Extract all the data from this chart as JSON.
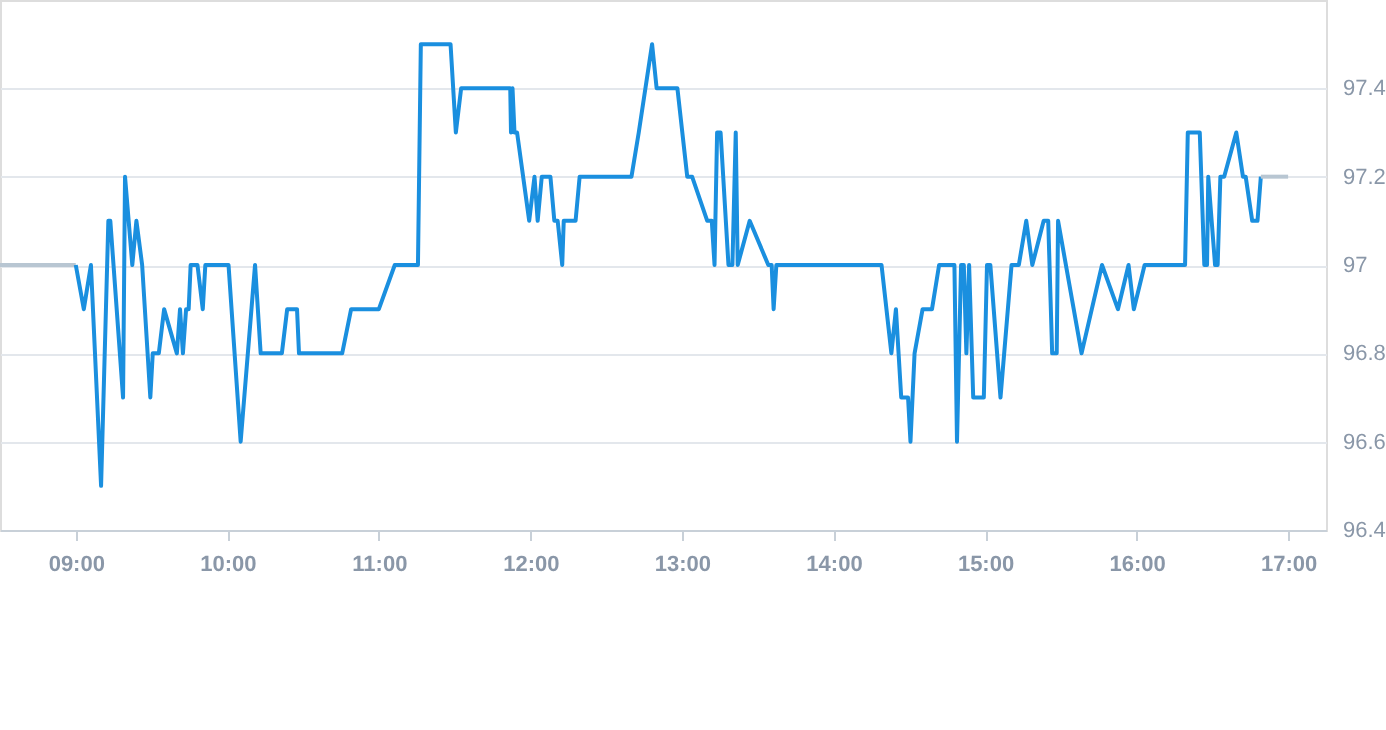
{
  "chart_data": {
    "type": "line",
    "xlim": [
      8.5,
      17.25
    ],
    "ylim": [
      96.4,
      97.6
    ],
    "xticks": [
      {
        "value": 9,
        "label": "09:00"
      },
      {
        "value": 10,
        "label": "10:00"
      },
      {
        "value": 11,
        "label": "11:00"
      },
      {
        "value": 12,
        "label": "12:00"
      },
      {
        "value": 13,
        "label": "13:00"
      },
      {
        "value": 14,
        "label": "14:00"
      },
      {
        "value": 15,
        "label": "15:00"
      },
      {
        "value": 16,
        "label": "16:00"
      },
      {
        "value": 17,
        "label": "17:00"
      }
    ],
    "yticks": [
      96.4,
      96.6,
      96.8,
      97,
      97.2,
      97.4
    ],
    "grid": "y",
    "marker": "none",
    "line_style": "solid",
    "series": [
      {
        "color": "#b8c6d2",
        "x": [
          8.5,
          9.0
        ],
        "values": [
          97.0,
          97.0
        ]
      },
      {
        "color": "#1a8fdf",
        "x": [
          9.0,
          9.053,
          9.1,
          9.167,
          9.215,
          9.228,
          9.312,
          9.325,
          9.373,
          9.4,
          9.438,
          9.492,
          9.508,
          9.548,
          9.583,
          9.667,
          9.688,
          9.707,
          9.728,
          9.745,
          9.758,
          9.803,
          9.838,
          9.855,
          10.008,
          10.088,
          10.183,
          10.22,
          10.36,
          10.395,
          10.46,
          10.473,
          10.758,
          10.817,
          11.0,
          11.105,
          11.258,
          11.277,
          11.473,
          11.508,
          11.543,
          11.867,
          11.872,
          11.882,
          11.895,
          11.912,
          11.992,
          12.027,
          12.048,
          12.075,
          12.132,
          12.158,
          12.18,
          12.21,
          12.22,
          12.298,
          12.325,
          12.667,
          12.715,
          12.803,
          12.833,
          12.97,
          13.035,
          13.067,
          13.167,
          13.197,
          13.215,
          13.232,
          13.255,
          13.307,
          13.333,
          13.355,
          13.368,
          13.447,
          13.57,
          13.592,
          13.605,
          13.623,
          14.317,
          14.382,
          14.412,
          14.447,
          14.492,
          14.508,
          14.535,
          14.588,
          14.65,
          14.697,
          14.798,
          14.815,
          14.842,
          14.86,
          14.877,
          14.895,
          14.922,
          14.992,
          15.013,
          15.035,
          15.102,
          15.175,
          15.223,
          15.272,
          15.312,
          15.387,
          15.417,
          15.443,
          15.473,
          15.482,
          15.637,
          15.772,
          15.877,
          15.947,
          15.982,
          16.053,
          16.32,
          16.338,
          16.417,
          16.447,
          16.465,
          16.473,
          16.518,
          16.535,
          16.553,
          16.578,
          16.658,
          16.702,
          16.72,
          16.763,
          16.798,
          16.82
        ],
        "values": [
          97.0,
          96.9,
          97.0,
          96.5,
          97.1,
          97.1,
          96.7,
          97.2,
          97.0,
          97.1,
          97.0,
          96.7,
          96.8,
          96.8,
          96.9,
          96.8,
          96.9,
          96.8,
          96.9,
          96.9,
          97.0,
          97.0,
          96.9,
          97.0,
          97.0,
          96.6,
          97.0,
          96.8,
          96.8,
          96.9,
          96.9,
          96.8,
          96.8,
          96.9,
          96.9,
          97.0,
          97.0,
          97.5,
          97.5,
          97.3,
          97.4,
          97.4,
          97.3,
          97.4,
          97.3,
          97.3,
          97.1,
          97.2,
          97.1,
          97.2,
          97.2,
          97.1,
          97.1,
          97.0,
          97.1,
          97.1,
          97.2,
          97.2,
          97.3,
          97.5,
          97.4,
          97.4,
          97.2,
          97.2,
          97.1,
          97.1,
          97.0,
          97.3,
          97.3,
          97.0,
          97.0,
          97.3,
          97.0,
          97.1,
          97.0,
          97.0,
          96.9,
          97.0,
          97.0,
          96.8,
          96.9,
          96.7,
          96.7,
          96.6,
          96.8,
          96.9,
          96.9,
          97.0,
          97.0,
          96.6,
          97.0,
          97.0,
          96.8,
          97.0,
          96.7,
          96.7,
          97.0,
          97.0,
          96.7,
          97.0,
          97.0,
          97.1,
          97.0,
          97.1,
          97.1,
          96.8,
          96.8,
          97.1,
          96.8,
          97.0,
          96.9,
          97.0,
          96.9,
          97.0,
          97.0,
          97.3,
          97.3,
          97.0,
          97.0,
          97.2,
          97.0,
          97.0,
          97.2,
          97.2,
          97.3,
          97.2,
          97.2,
          97.1,
          97.1,
          97.2
        ]
      },
      {
        "color": "#b8c6d2",
        "x": [
          16.82,
          17.0
        ],
        "values": [
          97.2,
          97.2
        ]
      }
    ]
  }
}
